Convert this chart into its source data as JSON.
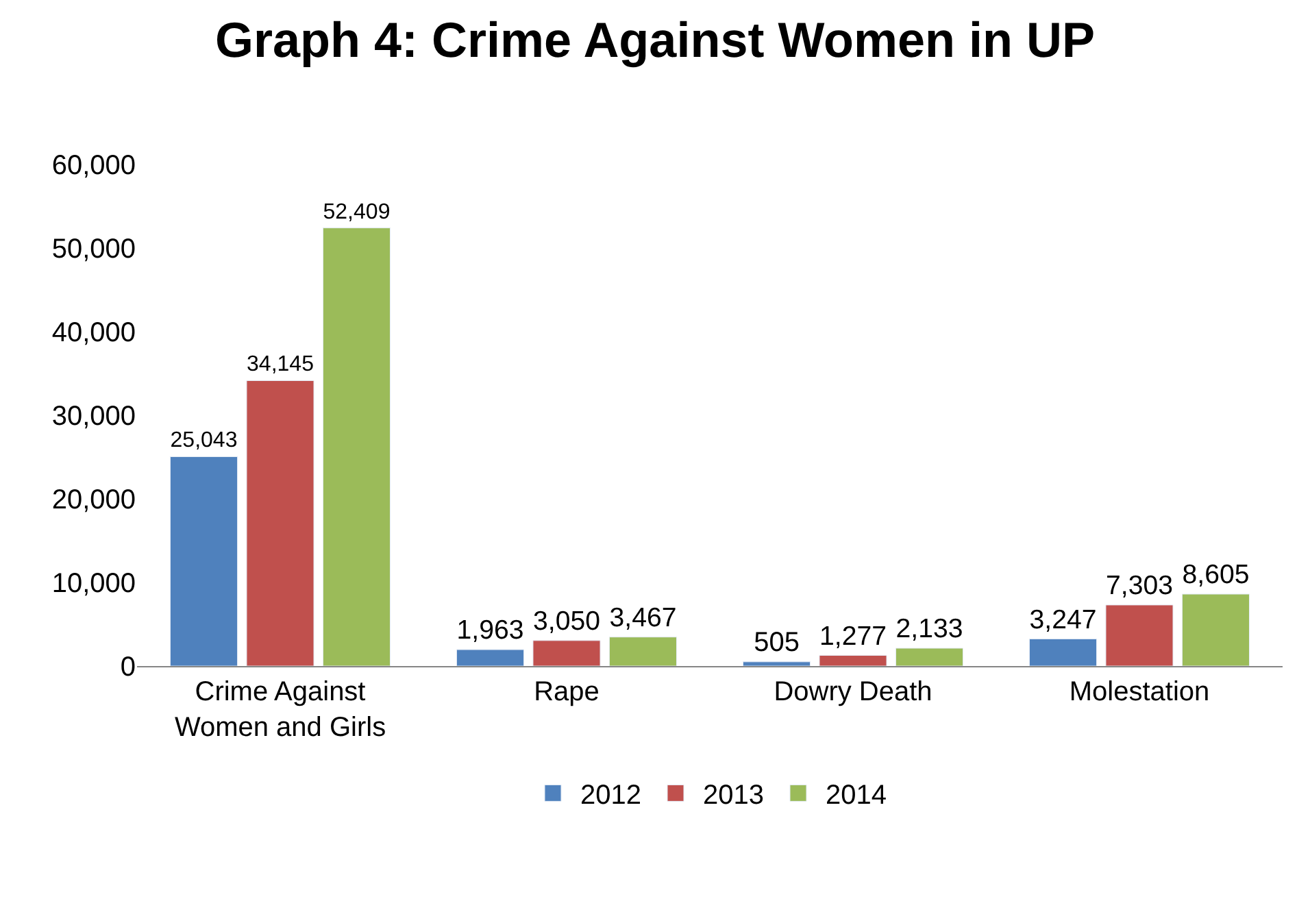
{
  "chart_data": {
    "type": "bar",
    "title": "Graph 4: Crime Against Women in UP",
    "categories": [
      "Crime Against Women and Girls",
      "Rape",
      "Dowry Death",
      "Molestation"
    ],
    "series": [
      {
        "name": "2012",
        "color": "#4f81bd",
        "values": [
          25043,
          1963,
          505,
          3247
        ],
        "value_labels": [
          "25,043",
          "1,963",
          "505",
          "3,247"
        ]
      },
      {
        "name": "2013",
        "color": "#c0504d",
        "values": [
          34145,
          3050,
          1277,
          7303
        ],
        "value_labels": [
          "34,145",
          "3,050",
          "1,277",
          "7,303"
        ]
      },
      {
        "name": "2014",
        "color": "#9bbb59",
        "values": [
          52409,
          3467,
          2133,
          8605
        ],
        "value_labels": [
          "52,409",
          "3,467",
          "2,133",
          "8,605"
        ]
      }
    ],
    "ylim": [
      0,
      60000
    ],
    "yticks": [
      {
        "value": 0,
        "label": "0"
      },
      {
        "value": 10000,
        "label": "10,000"
      },
      {
        "value": 20000,
        "label": "20,000"
      },
      {
        "value": 30000,
        "label": "30,000"
      },
      {
        "value": 40000,
        "label": "40,000"
      },
      {
        "value": 50000,
        "label": "50,000"
      },
      {
        "value": 60000,
        "label": "60,000"
      }
    ],
    "grid": false,
    "legend": "bottom"
  }
}
